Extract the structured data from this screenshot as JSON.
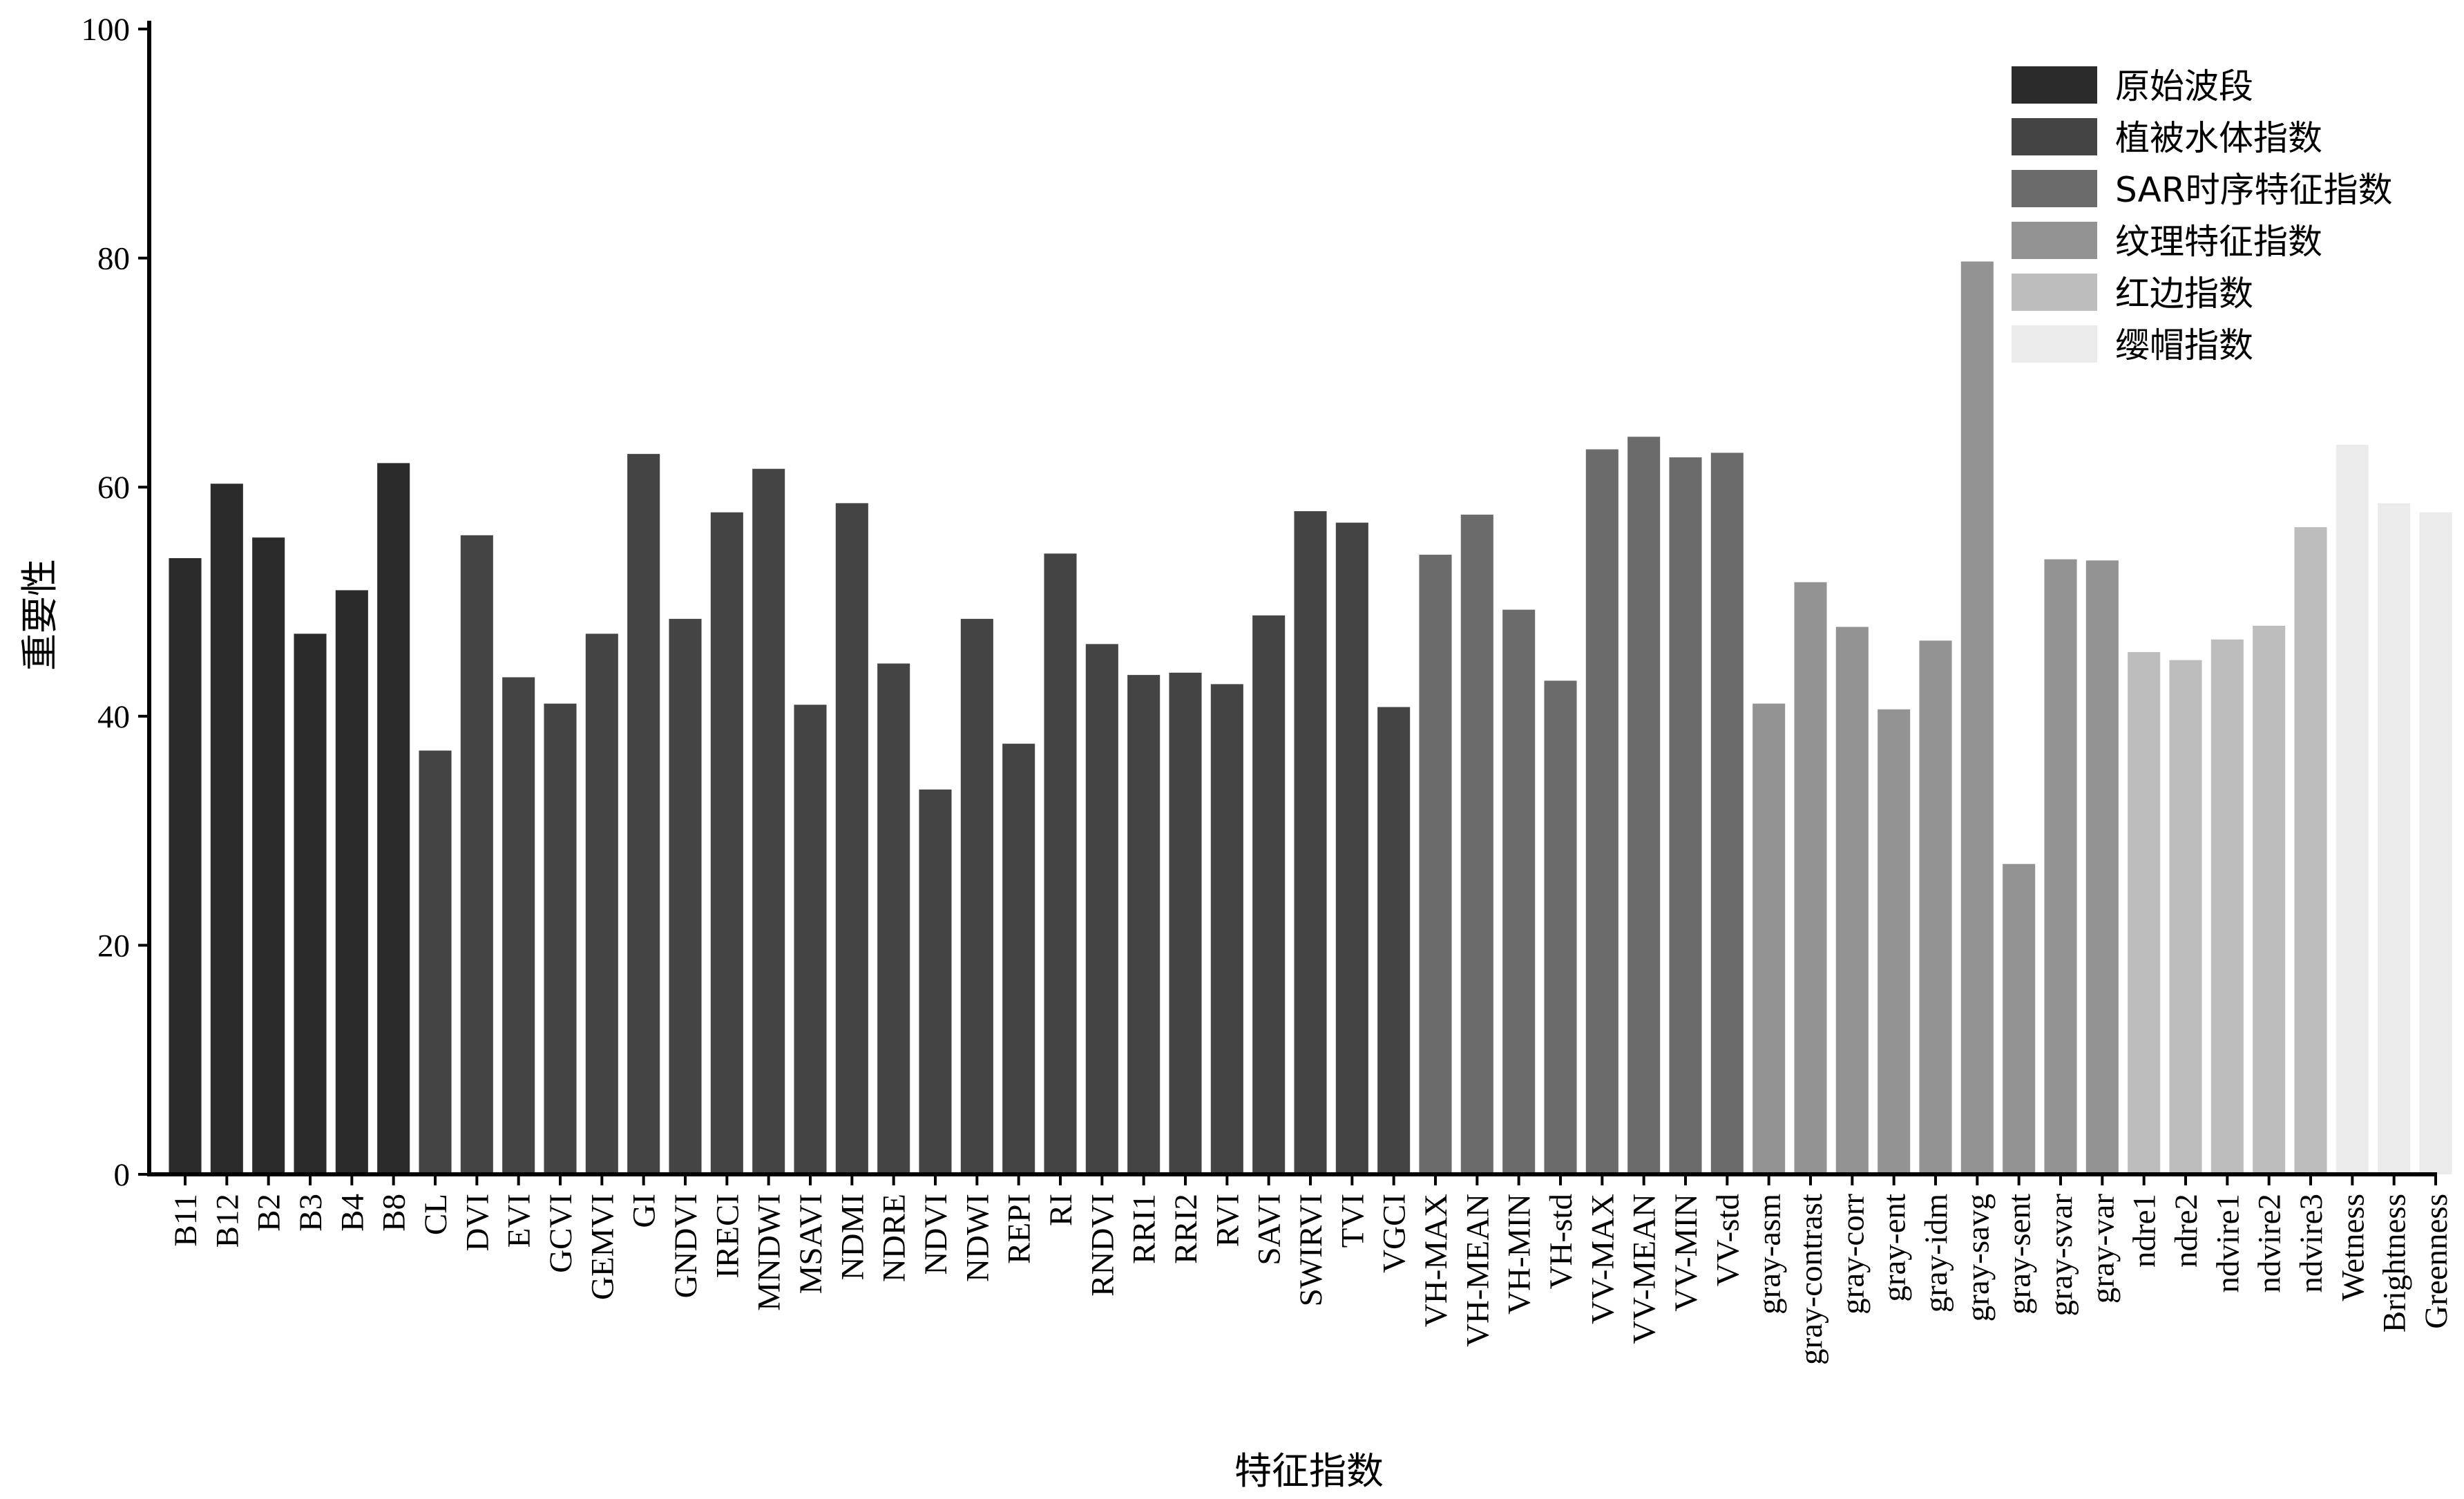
{
  "chart_data": {
    "type": "bar",
    "title": "",
    "xlabel": "特征指数",
    "ylabel": "重要性",
    "ylim": [
      0,
      100
    ],
    "yticks": [
      0,
      20,
      40,
      60,
      80,
      100
    ],
    "grid": false,
    "legend_position": "top-right",
    "categories": [
      "B11",
      "B12",
      "B2",
      "B3",
      "B4",
      "B8",
      "CL",
      "DVI",
      "EVI",
      "GCVI",
      "GEMVI",
      "GI",
      "GNDVI",
      "IRECI",
      "MNDWI",
      "MSAVI",
      "NDMI",
      "NDRE",
      "NDVI",
      "NDWI",
      "REPI",
      "RI",
      "RNDVI",
      "RRI1",
      "RRI2",
      "RVI",
      "SAVI",
      "SWIRVI",
      "TVI",
      "VGCI",
      "VH-MAX",
      "VH-MEAN",
      "VH-MIN",
      "VH-std",
      "VV-MAX",
      "VV-MEAN",
      "VV-MIN",
      "VV-std",
      "gray-asm",
      "gray-contrast",
      "gray-corr",
      "gray-ent",
      "gray-idm",
      "gray-savg",
      "gray-sent",
      "gray-svar",
      "gray-var",
      "ndre1",
      "ndre2",
      "ndvire1",
      "ndvire2",
      "ndvire3",
      "Wetness",
      "Brightness",
      "Greenness"
    ],
    "values": [
      53.8,
      60.3,
      55.6,
      47.2,
      51.0,
      62.1,
      37.0,
      55.8,
      43.4,
      41.1,
      47.2,
      62.9,
      48.5,
      57.8,
      61.6,
      41.0,
      58.6,
      44.6,
      33.6,
      48.5,
      37.6,
      54.2,
      46.3,
      43.6,
      43.8,
      42.8,
      48.8,
      57.9,
      56.9,
      40.8,
      54.1,
      57.6,
      49.3,
      43.1,
      63.3,
      64.4,
      62.6,
      63.0,
      41.1,
      51.7,
      47.8,
      40.6,
      46.6,
      79.7,
      27.1,
      53.7,
      53.6,
      45.6,
      44.9,
      46.7,
      47.9,
      56.5,
      63.7,
      58.6,
      57.8
    ],
    "groups": [
      0,
      0,
      0,
      0,
      0,
      0,
      1,
      1,
      1,
      1,
      1,
      1,
      1,
      1,
      1,
      1,
      1,
      1,
      1,
      1,
      1,
      1,
      1,
      1,
      1,
      1,
      1,
      1,
      1,
      1,
      2,
      2,
      2,
      2,
      2,
      2,
      2,
      2,
      3,
      3,
      3,
      3,
      3,
      3,
      3,
      3,
      3,
      4,
      4,
      4,
      4,
      4,
      5,
      5,
      5
    ],
    "series": [
      {
        "name": "原始波段",
        "color": "#2b2b2b"
      },
      {
        "name": "植被水体指数",
        "color": "#444444"
      },
      {
        "name": "SAR时序特征指数",
        "color": "#6b6b6b"
      },
      {
        "name": "纹理特征指数",
        "color": "#939393"
      },
      {
        "name": "红边指数",
        "color": "#bdbdbd"
      },
      {
        "name": "缨帽指数",
        "color": "#ebebeb"
      }
    ]
  }
}
